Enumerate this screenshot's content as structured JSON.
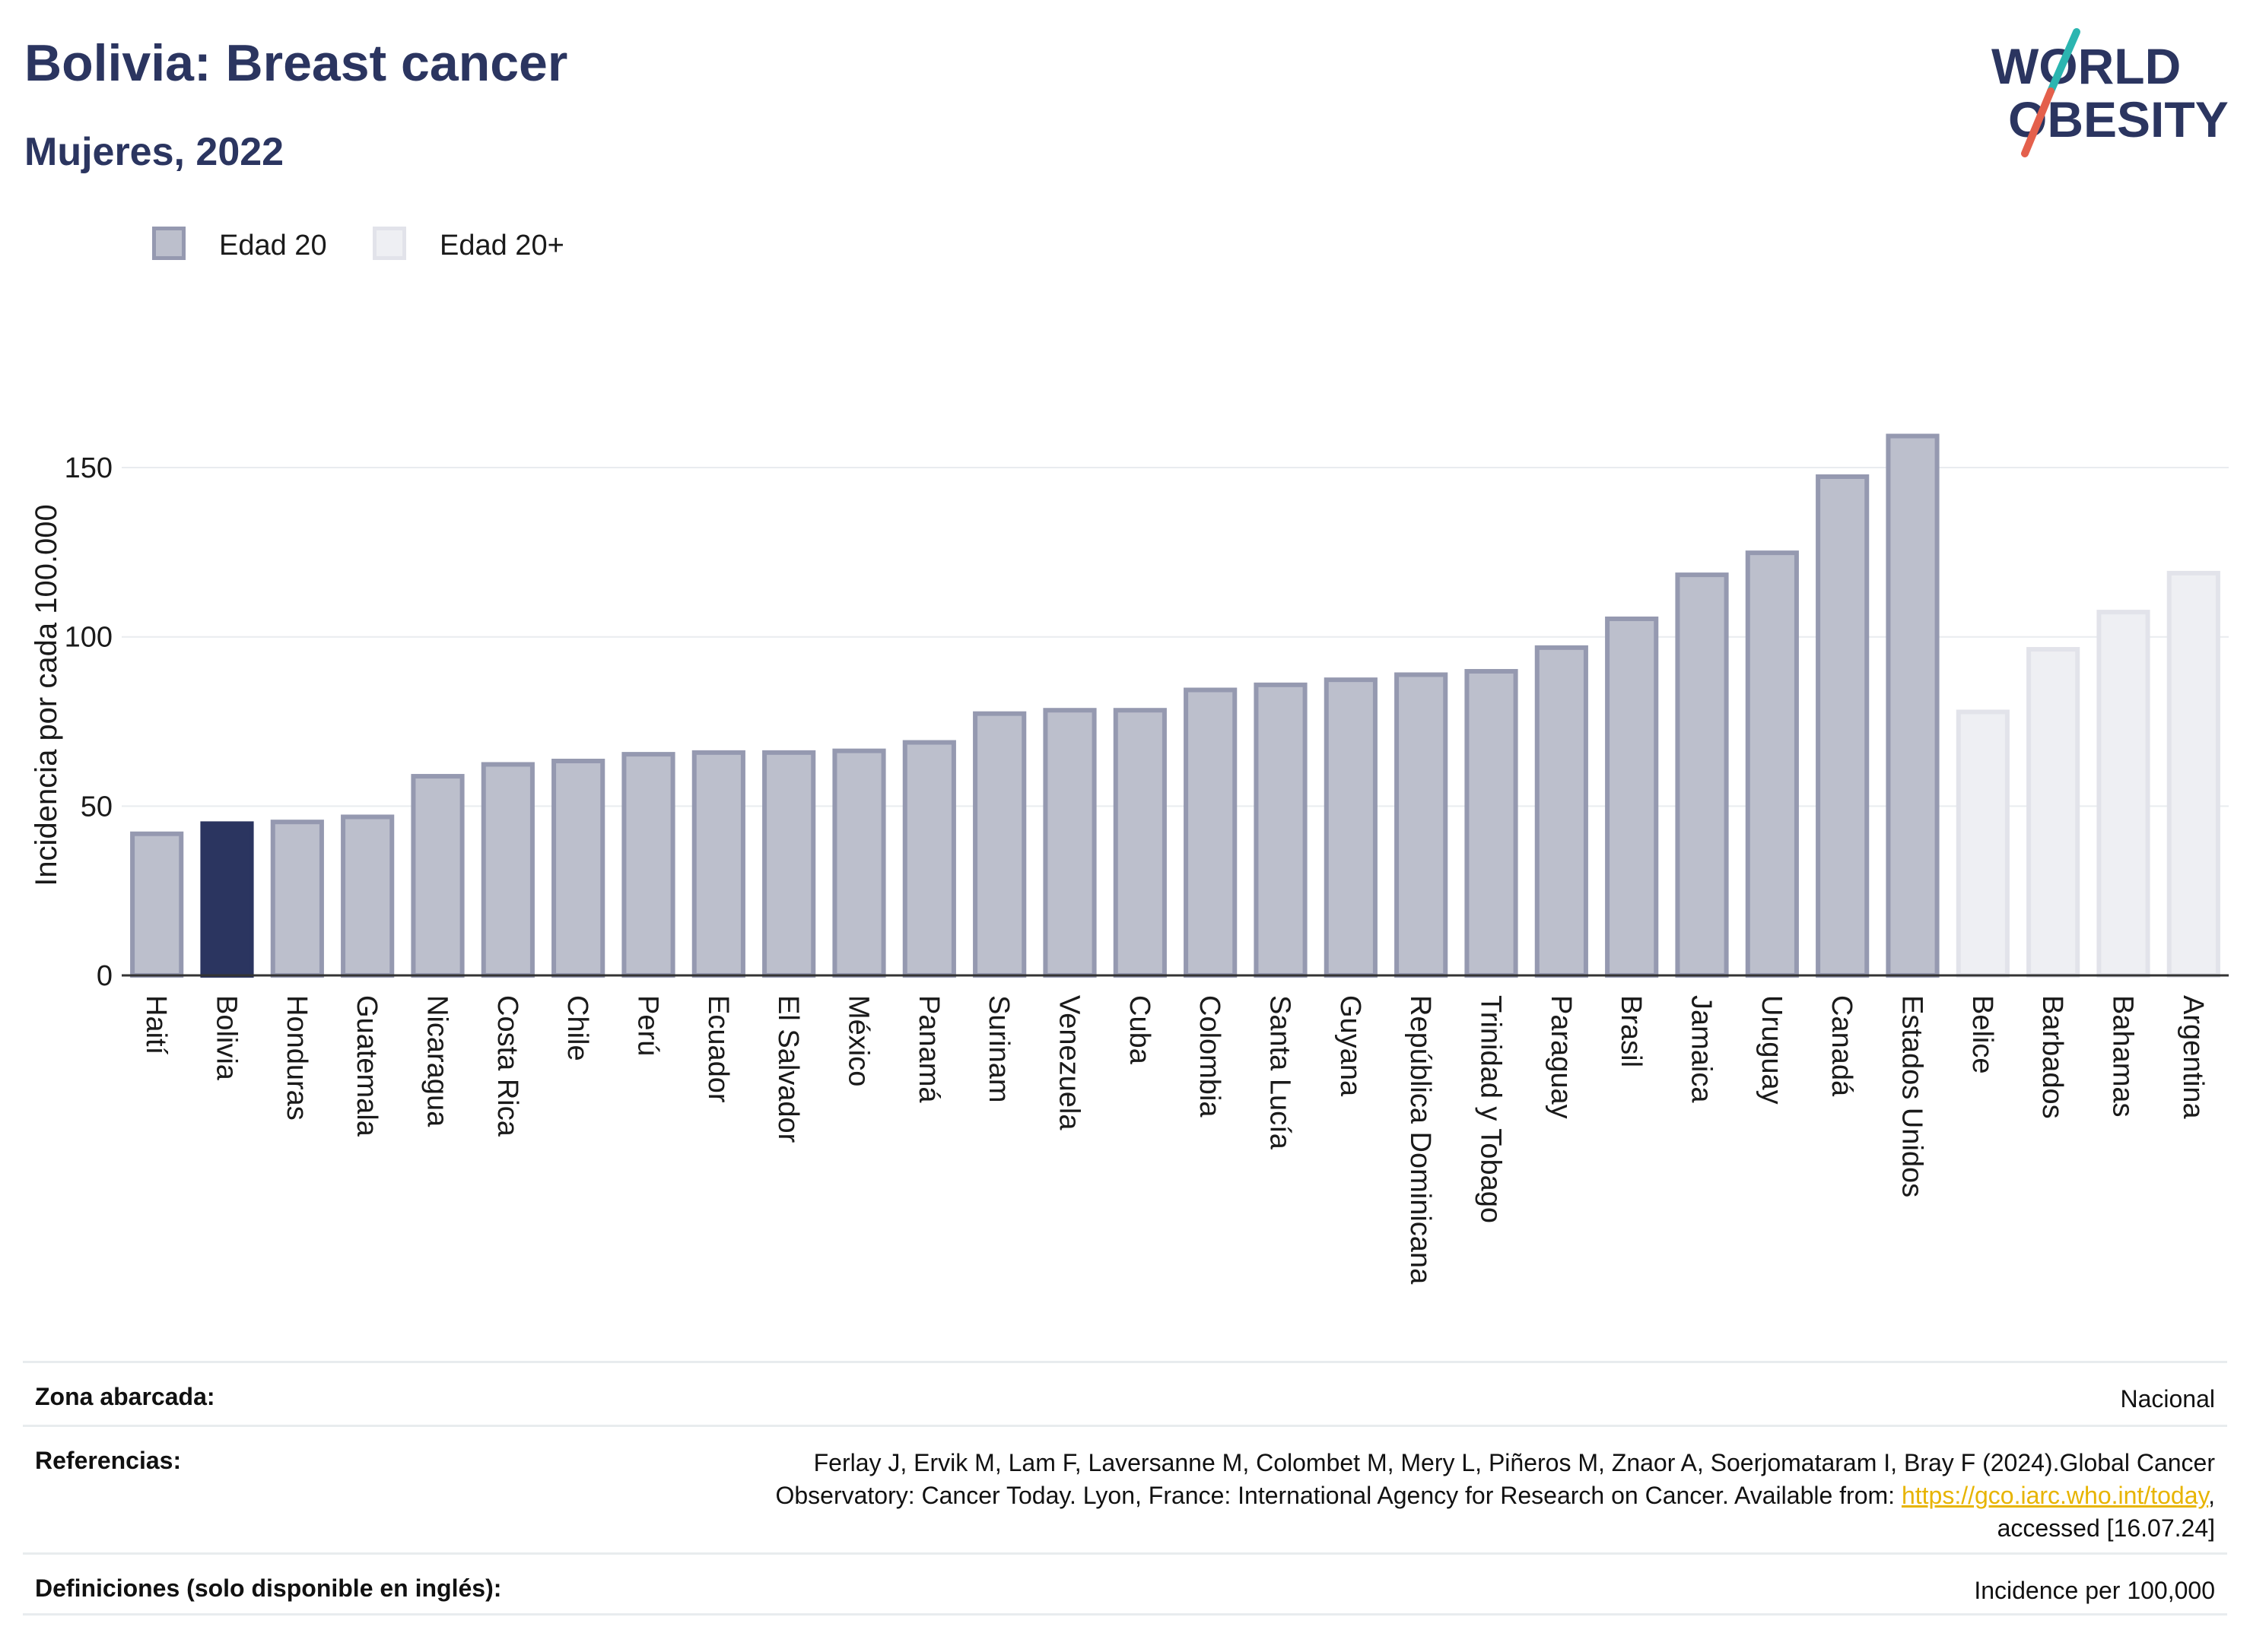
{
  "header": {
    "title": "Bolivia: Breast cancer",
    "subtitle": "Mujeres, 2022",
    "logo_line1": "WORLD",
    "logo_line2": "OBESITY"
  },
  "legend": [
    {
      "label": "Edad 20",
      "color": "#bcbfcc",
      "border": "#9599b0"
    },
    {
      "label": "Edad 20+",
      "color": "#eeeff3",
      "border": "#e2e3ea"
    }
  ],
  "colors": {
    "highlight": "#2b3560",
    "bar_edad20": "#bcbfcc",
    "bar_edad20_border": "#9599b0",
    "bar_edad20plus": "#eeeff3",
    "bar_edad20plus_border": "#e2e3ea",
    "link": "#e7b400",
    "logo_slash_top": "#2bb5b0",
    "logo_slash_bottom": "#e4604c"
  },
  "chart_data": {
    "type": "bar",
    "title": "Bolivia: Breast cancer",
    "subtitle": "Mujeres, 2022",
    "ylabel": "Incidencia por cada 100.000",
    "ylim": [
      0,
      170
    ],
    "yticks": [
      0,
      50,
      100,
      150
    ],
    "grid": true,
    "legend_position": "top-left",
    "categories": [
      "Haití",
      "Bolivia",
      "Honduras",
      "Guatemala",
      "Nicaragua",
      "Costa Rica",
      "Chile",
      "Perú",
      "Ecuador",
      "El Salvador",
      "México",
      "Panamá",
      "Surinam",
      "Venezuela",
      "Cuba",
      "Colombia",
      "Santa Lucía",
      "Guyana",
      "República Dominicana",
      "Trinidad y Tobago",
      "Paraguay",
      "Brasil",
      "Jamaica",
      "Uruguay",
      "Canadá",
      "Estados Unidos",
      "Belice",
      "Barbados",
      "Bahamas",
      "Argentina"
    ],
    "values": [
      42.5,
      45.5,
      46,
      47.5,
      59.5,
      63,
      64,
      66,
      66.5,
      66.5,
      67,
      69.5,
      78,
      79,
      79,
      85,
      86.5,
      88,
      89.5,
      90.5,
      97.5,
      106,
      119,
      125.5,
      148,
      160,
      78.5,
      97,
      108,
      119.5
    ],
    "groups": [
      "Edad 20",
      "Edad 20",
      "Edad 20",
      "Edad 20",
      "Edad 20",
      "Edad 20",
      "Edad 20",
      "Edad 20",
      "Edad 20",
      "Edad 20",
      "Edad 20",
      "Edad 20",
      "Edad 20",
      "Edad 20",
      "Edad 20",
      "Edad 20",
      "Edad 20",
      "Edad 20",
      "Edad 20",
      "Edad 20",
      "Edad 20",
      "Edad 20",
      "Edad 20",
      "Edad 20",
      "Edad 20",
      "Edad 20",
      "Edad 20+",
      "Edad 20+",
      "Edad 20+",
      "Edad 20+"
    ],
    "highlight": "Bolivia"
  },
  "info": {
    "zona_label": "Zona abarcada:",
    "zona_value": "Nacional",
    "ref_label": "Referencias:",
    "ref_line1": "Ferlay J, Ervik M, Lam F, Laversanne M, Colombet M, Mery L, Piñeros M, Znaor A, Soerjomataram I, Bray F (2024).Global Cancer",
    "ref_line2_pre": "Observatory: Cancer Today. Lyon, France: International Agency for Research on Cancer. Available from: ",
    "ref_link": "https://gco.iarc.who.int/today",
    "ref_line2_post": ",",
    "ref_line3": "accessed [16.07.24]",
    "def_label": "Definiciones (solo disponible en inglés):",
    "def_value": "Incidence per 100,000"
  }
}
